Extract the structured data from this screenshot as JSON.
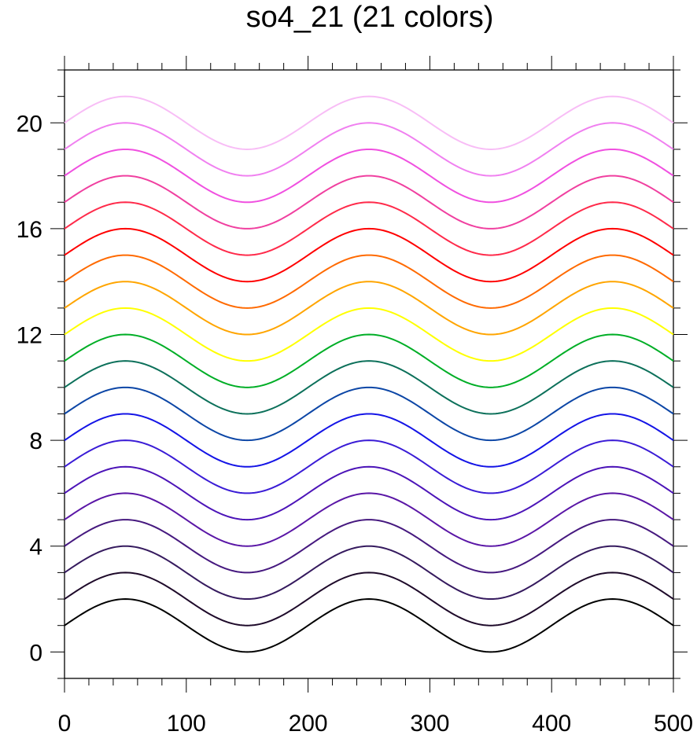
{
  "chart_data": {
    "type": "line",
    "title": "so4_21 (21 colors)",
    "xlim": [
      0,
      500
    ],
    "ylim": [
      -1,
      22
    ],
    "x_ticks": [
      "0",
      "100",
      "200",
      "300",
      "400",
      "500"
    ],
    "y_ticks": [
      "0",
      "4",
      "8",
      "12",
      "16",
      "20"
    ],
    "grid": false,
    "legend": "none",
    "curve": {
      "function": "offset + 1 + cos(2*pi*(x-50)/200)",
      "x_start": 0,
      "x_end": 500,
      "period": 200,
      "amplitude": 1
    },
    "series": [
      {
        "offset": 0,
        "color": "#000000"
      },
      {
        "offset": 1,
        "color": "#1e0a2a"
      },
      {
        "offset": 2,
        "color": "#351a5e"
      },
      {
        "offset": 3,
        "color": "#46197f"
      },
      {
        "offset": 4,
        "color": "#5a16a6"
      },
      {
        "offset": 5,
        "color": "#4c14b8"
      },
      {
        "offset": 6,
        "color": "#3a1cd6"
      },
      {
        "offset": 7,
        "color": "#1414e6"
      },
      {
        "offset": 8,
        "color": "#0c46a6"
      },
      {
        "offset": 9,
        "color": "#0c705a"
      },
      {
        "offset": 10,
        "color": "#00ae26"
      },
      {
        "offset": 11,
        "color": "#ffff00"
      },
      {
        "offset": 12,
        "color": "#ffa500"
      },
      {
        "offset": 13,
        "color": "#ff6a00"
      },
      {
        "offset": 14,
        "color": "#ff0000"
      },
      {
        "offset": 15,
        "color": "#ff2a4a"
      },
      {
        "offset": 16,
        "color": "#f040a0"
      },
      {
        "offset": 17,
        "color": "#f050e0"
      },
      {
        "offset": 18,
        "color": "#f080f0"
      },
      {
        "offset": 19,
        "color": "#f8bdf6"
      }
    ]
  }
}
